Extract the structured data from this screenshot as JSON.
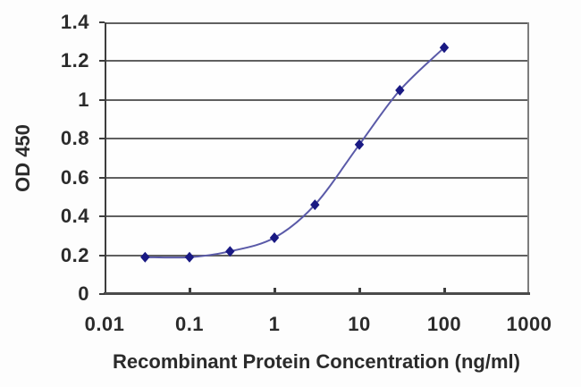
{
  "chart_data": {
    "type": "line",
    "title": "",
    "xlabel": "Recombinant Protein Concentration (ng/ml)",
    "ylabel": "OD 450",
    "x_scale": "log",
    "xlim": [
      0.01,
      1000
    ],
    "ylim": [
      0,
      1.4
    ],
    "x_ticks": [
      "0.01",
      "0.1",
      "1",
      "10",
      "100",
      "1000"
    ],
    "y_ticks": [
      "0",
      "0.2",
      "0.4",
      "0.6",
      "0.8",
      "1",
      "1.2",
      "1.4"
    ],
    "grid": true,
    "legend": "none",
    "series": [
      {
        "name": "standard-curve",
        "x": [
          0.03,
          0.1,
          0.3,
          1,
          3,
          10,
          30,
          100
        ],
        "y": [
          0.19,
          0.19,
          0.22,
          0.29,
          0.46,
          0.77,
          1.05,
          1.27
        ],
        "marker": "diamond",
        "smoothed": true
      }
    ],
    "colors": {
      "line": "#5a5aa8",
      "marker": "#191983",
      "grid": "#606060",
      "axis": "#3d3d3d",
      "text": "#2b2b2b",
      "plot_background": "#fefefe",
      "figure_background": "#fdfdfd"
    }
  }
}
